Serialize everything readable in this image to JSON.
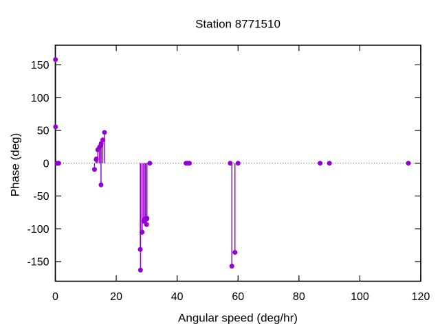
{
  "page": {
    "background": "#ffffff",
    "border_color": "#000000",
    "zero_line_color": "#666666",
    "accent_color": "#9400d3"
  },
  "chart_data": {
    "type": "scatter",
    "subtype": "impulses-with-points",
    "title": "Station 8771510",
    "xlabel": "Angular speed (deg/hr)",
    "ylabel": "Phase (deg)",
    "xlim": [
      0,
      120
    ],
    "ylim": [
      -180,
      180
    ],
    "x_ticks": [
      0,
      20,
      40,
      60,
      80,
      100,
      120
    ],
    "y_ticks": [
      -150,
      -100,
      -50,
      0,
      50,
      100,
      150
    ],
    "grid": false,
    "legend_position": "none",
    "zero_line": {
      "y": 0,
      "style": "dotted",
      "color": "#666666"
    },
    "series": [
      {
        "name": "phase-vs-angular-speed",
        "color": "#9400d3",
        "marker": "filled-circle",
        "stems": true,
        "points": [
          [
            0.0411,
            158
          ],
          [
            0.0821,
            55.5
          ],
          [
            0.5444,
            0
          ],
          [
            1.0159,
            0
          ],
          [
            1.098,
            0
          ],
          [
            12.8543,
            -9.5
          ],
          [
            13.3987,
            5.5
          ],
          [
            13.4715,
            6.5
          ],
          [
            13.943,
            20.5
          ],
          [
            14.4967,
            24.5
          ],
          [
            14.9589,
            27.5
          ],
          [
            15.0,
            -33
          ],
          [
            15.0411,
            30
          ],
          [
            15.5854,
            35.5
          ],
          [
            16.1391,
            47
          ],
          [
            27.8954,
            -131.5
          ],
          [
            27.9682,
            -163
          ],
          [
            28.4397,
            -105.5
          ],
          [
            28.5126,
            -105
          ],
          [
            28.9841,
            -88.5
          ],
          [
            29.4556,
            -85
          ],
          [
            29.5285,
            -85.5
          ],
          [
            29.9589,
            -93.5
          ],
          [
            30.0,
            -85
          ],
          [
            30.0411,
            -84.5
          ],
          [
            30.0821,
            -84
          ],
          [
            31.0159,
            0
          ],
          [
            42.9271,
            0
          ],
          [
            43.4762,
            0
          ],
          [
            44.0252,
            0
          ],
          [
            57.4238,
            0
          ],
          [
            57.9682,
            -157
          ],
          [
            58.9841,
            -136
          ],
          [
            60.0,
            0
          ],
          [
            86.9523,
            0
          ],
          [
            90.0,
            0
          ],
          [
            115.9364,
            0
          ]
        ]
      }
    ]
  }
}
